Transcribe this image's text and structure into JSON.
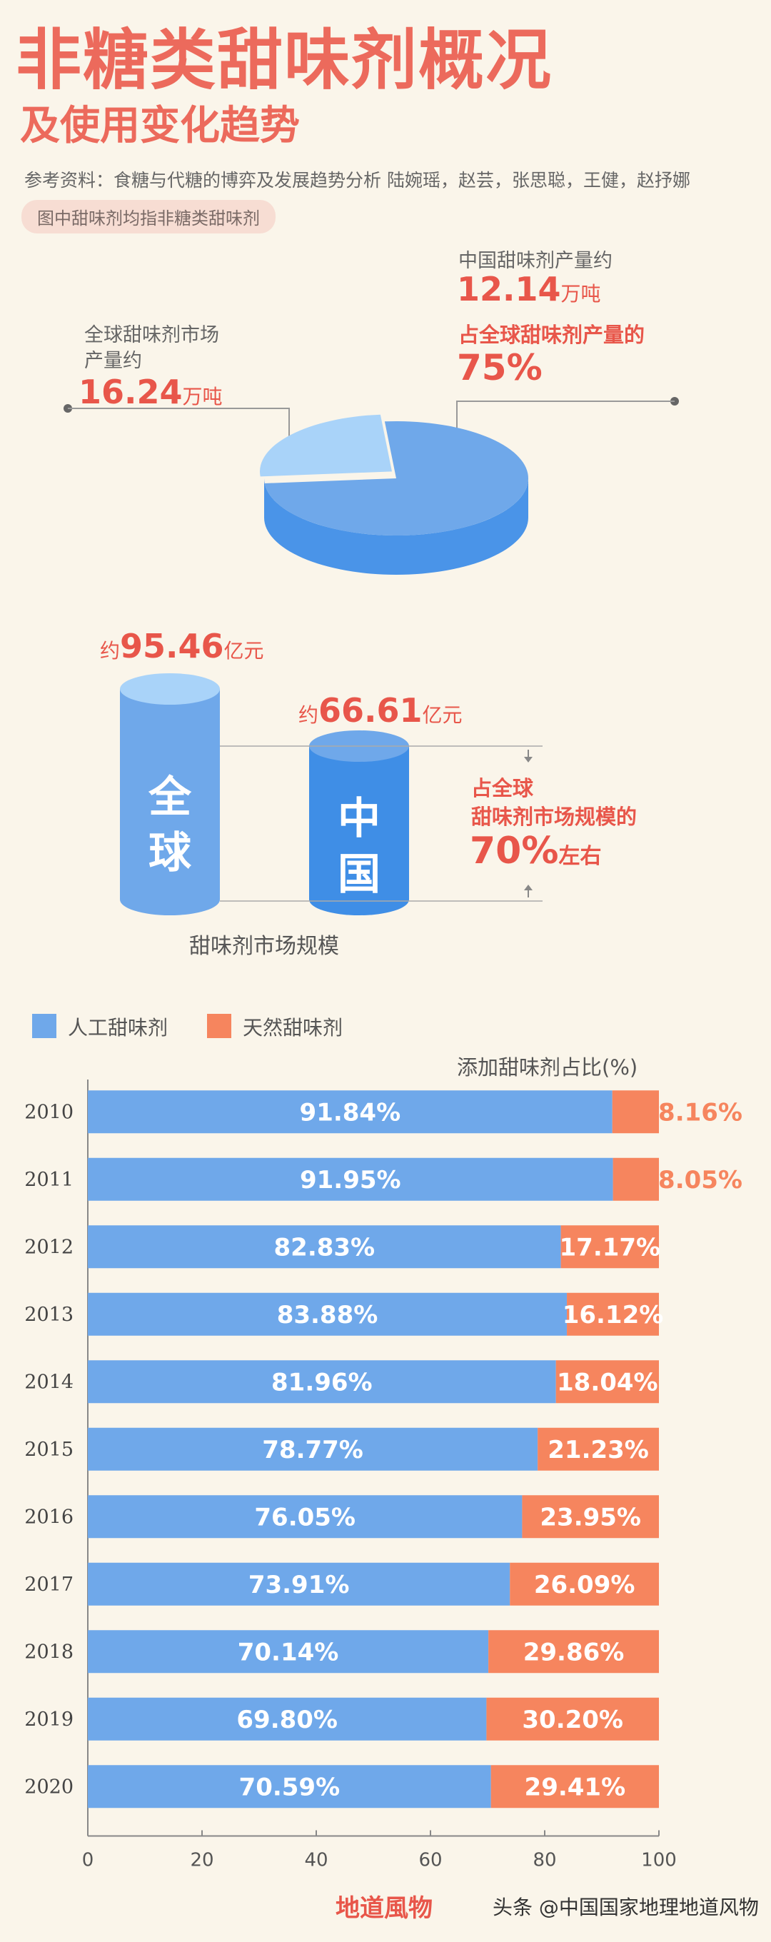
{
  "header": {
    "title_line1": "非糖类甜味剂概况",
    "title_line2": "及使用变化趋势",
    "reference": "参考资料：食糖与代糖的博弈及发展趋势分析 陆婉瑶，赵芸，张思聪，王健，赵抒娜",
    "note": "图中甜味剂均指非糖类甜味剂"
  },
  "production": {
    "global_label_line1": "全球甜味剂市场",
    "global_label_line2": "产量约",
    "global_value": "16.24",
    "global_unit": "万吨",
    "china_label": "中国甜味剂产量约",
    "china_value": "12.14",
    "china_unit": "万吨",
    "share_label": "占全球甜味剂产量的",
    "share_value": "75%",
    "pie_share": 0.75
  },
  "market": {
    "global_prefix": "约",
    "global_value": "95.46",
    "global_unit": "亿元",
    "global_text_line1": "全",
    "global_text_line2": "球",
    "china_prefix": "约",
    "china_value": "66.61",
    "china_unit": "亿元",
    "china_text_line1": "中",
    "china_text_line2": "国",
    "share_line1": "占全球",
    "share_line2": "甜味剂市场规模的",
    "share_value": "70%",
    "share_suffix": "左右",
    "caption": "甜味剂市场规模"
  },
  "legend": {
    "artificial": "人工甜味剂",
    "natural": "天然甜味剂"
  },
  "colors": {
    "artificial": "#6fa8ea",
    "natural": "#f6855e",
    "accent": "#e8564a"
  },
  "footer": {
    "logo": "地道風物",
    "watermark": "头条 @中国国家地理地道风物"
  },
  "chart_data": {
    "type": "bar",
    "stacked": true,
    "orientation": "horizontal",
    "title": "添加甜味剂占比(%)",
    "categories": [
      "2010",
      "2011",
      "2012",
      "2013",
      "2014",
      "2015",
      "2016",
      "2017",
      "2018",
      "2019",
      "2020"
    ],
    "series": [
      {
        "name": "人工甜味剂",
        "values": [
          91.84,
          91.95,
          82.83,
          83.88,
          81.96,
          78.77,
          76.05,
          73.91,
          70.14,
          69.8,
          70.59
        ],
        "labels": [
          "91.84%",
          "91.95%",
          "82.83%",
          "83.88%",
          "81.96%",
          "78.77%",
          "76.05%",
          "73.91%",
          "70.14%",
          "69.80%",
          "70.59%"
        ]
      },
      {
        "name": "天然甜味剂",
        "values": [
          8.16,
          8.05,
          17.17,
          16.12,
          18.04,
          21.23,
          23.95,
          26.09,
          29.86,
          30.2,
          29.41
        ],
        "labels": [
          "8.16%",
          "8.05%",
          "17.17%",
          "16.12%",
          "18.04%",
          "21.23%",
          "23.95%",
          "26.09%",
          "29.86%",
          "30.20%",
          "29.41%"
        ]
      }
    ],
    "xlim": [
      0,
      100
    ],
    "xticks": [
      "0",
      "20",
      "40",
      "60",
      "80",
      "100"
    ],
    "grid": false,
    "legend": "top-left"
  }
}
